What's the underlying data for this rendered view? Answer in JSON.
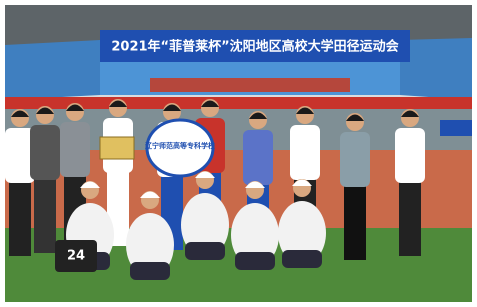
{
  "banner": {
    "title": "2021年“菲普莱杯”沈阳地区高校大学田径运动会"
  },
  "flag": {
    "text": "辽宁师范高等专科学校"
  },
  "bag": {
    "number": "24"
  }
}
